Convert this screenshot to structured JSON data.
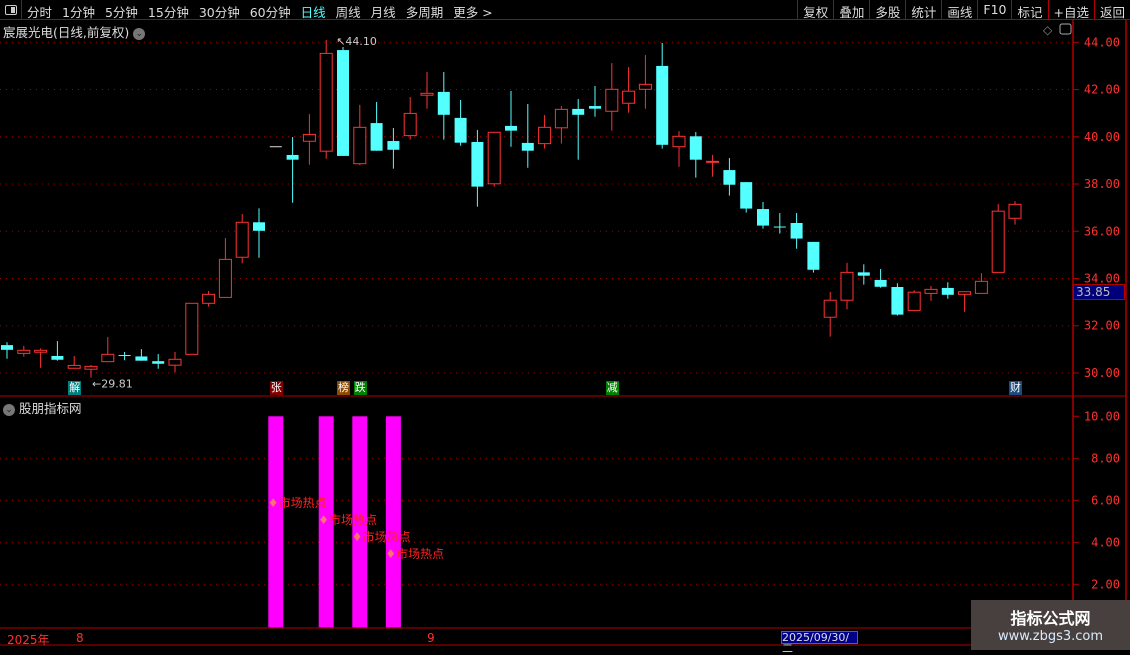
{
  "toolbar": {
    "periods": [
      "分时",
      "1分钟",
      "5分钟",
      "15分钟",
      "30分钟",
      "60分钟",
      "日线",
      "周线",
      "月线",
      "多周期",
      "更多 >"
    ],
    "active_period": "日线",
    "right_buttons": [
      "复权",
      "叠加",
      "多股",
      "统计",
      "画线",
      "F10",
      "标记",
      "+自选",
      "返回"
    ]
  },
  "stock": {
    "title": "宸展光电(日线,前复权)",
    "last_price_tag": "33.85",
    "high_label": "44.10",
    "low_label": "29.81"
  },
  "indicator": {
    "title": "股朋指标网",
    "hot_label": "市场热点",
    "axis_ticks": [
      "10.00",
      "8.00",
      "6.00",
      "4.00",
      "2.00"
    ]
  },
  "markers": [
    {
      "text": "解",
      "candle": 4,
      "color": "#008080"
    },
    {
      "text": "张",
      "candle": 16,
      "color": "#800000"
    },
    {
      "text": "榜",
      "candle": 20,
      "color": "#8b4a00"
    },
    {
      "text": "跌",
      "candle": 21,
      "color": "#008000"
    },
    {
      "text": "减",
      "candle": 36,
      "color": "#008000"
    },
    {
      "text": "财",
      "candle": 60,
      "color": "#1a4a80"
    }
  ],
  "time_axis": {
    "year": "2025年",
    "months": [
      "8",
      "9"
    ],
    "cursor_date": "2025/09/30/二"
  },
  "watermark": {
    "title": "指标公式网",
    "url": "www.zbgs3.com"
  },
  "colors": {
    "up": "#ff3232",
    "down": "#54ffff",
    "grid": "#a00000",
    "bar": "#ff00ff"
  },
  "chart_data": [
    {
      "type": "candlestick",
      "ylim": [
        30,
        44
      ],
      "yticks": [
        "44.00",
        "42.00",
        "40.00",
        "38.00",
        "36.00",
        "34.00",
        "32.00",
        "30.00"
      ],
      "ohlc": [
        [
          31.18,
          31.3,
          30.6,
          30.98
        ],
        [
          30.83,
          31.15,
          30.69,
          30.96
        ],
        [
          30.88,
          31.04,
          30.22,
          30.96
        ],
        [
          30.72,
          31.35,
          30.52,
          30.56
        ],
        [
          30.2,
          30.72,
          30.2,
          30.32
        ],
        [
          30.16,
          30.34,
          29.81,
          30.28
        ],
        [
          30.48,
          31.52,
          30.48,
          30.79
        ],
        [
          30.76,
          30.89,
          30.54,
          30.74
        ],
        [
          30.7,
          31.01,
          30.52,
          30.52
        ],
        [
          30.5,
          30.8,
          30.18,
          30.39
        ],
        [
          30.33,
          30.89,
          30.03,
          30.58
        ],
        [
          30.79,
          32.95,
          30.79,
          32.95
        ],
        [
          32.95,
          33.47,
          32.81,
          33.33
        ],
        [
          33.2,
          35.71,
          33.2,
          34.81
        ],
        [
          34.9,
          36.73,
          34.64,
          36.38
        ],
        [
          36.38,
          36.97,
          34.88,
          36.02
        ],
        [
          39.6,
          39.6,
          39.6,
          39.6
        ],
        [
          39.23,
          39.99,
          37.21,
          39.03
        ],
        [
          39.81,
          40.96,
          38.82,
          40.1
        ],
        [
          39.39,
          44.1,
          39.07,
          43.53
        ],
        [
          43.67,
          43.8,
          39.19,
          39.19
        ],
        [
          38.86,
          41.35,
          38.8,
          40.4
        ],
        [
          40.58,
          41.47,
          39.41,
          39.41
        ],
        [
          39.82,
          40.37,
          38.65,
          39.45
        ],
        [
          40.05,
          41.68,
          39.88,
          40.99
        ],
        [
          41.76,
          42.74,
          41.19,
          41.84
        ],
        [
          41.9,
          42.74,
          39.88,
          40.93
        ],
        [
          40.8,
          41.56,
          39.62,
          39.75
        ],
        [
          39.78,
          40.29,
          37.04,
          37.89
        ],
        [
          38.01,
          40.19,
          37.89,
          40.19
        ],
        [
          40.46,
          41.94,
          39.58,
          40.26
        ],
        [
          39.74,
          41.39,
          38.69,
          39.41
        ],
        [
          39.71,
          40.92,
          39.5,
          40.4
        ],
        [
          40.38,
          41.3,
          39.71,
          41.16
        ],
        [
          41.18,
          41.6,
          39.03,
          40.93
        ],
        [
          41.3,
          42.15,
          40.85,
          41.19
        ],
        [
          41.08,
          43.12,
          40.26,
          42.01
        ],
        [
          41.42,
          42.95,
          41.02,
          41.93
        ],
        [
          42.01,
          43.46,
          41.19,
          42.22
        ],
        [
          43.0,
          43.97,
          39.5,
          39.66
        ],
        [
          39.58,
          40.24,
          38.73,
          40.02
        ],
        [
          40.02,
          40.2,
          38.27,
          39.03
        ],
        [
          38.95,
          39.23,
          38.31,
          38.96
        ],
        [
          38.59,
          39.1,
          37.51,
          37.97
        ],
        [
          38.08,
          38.08,
          36.79,
          36.96
        ],
        [
          36.94,
          37.24,
          36.11,
          36.24
        ],
        [
          36.2,
          36.77,
          35.9,
          36.17
        ],
        [
          36.35,
          36.77,
          35.26,
          35.69
        ],
        [
          35.55,
          35.55,
          34.25,
          34.37
        ],
        [
          32.36,
          33.43,
          31.54,
          33.08
        ],
        [
          33.08,
          34.66,
          32.7,
          34.26
        ],
        [
          34.26,
          34.6,
          33.74,
          34.12
        ],
        [
          33.94,
          34.4,
          33.61,
          33.65
        ],
        [
          33.64,
          33.8,
          32.43,
          32.47
        ],
        [
          32.65,
          33.5,
          32.65,
          33.42
        ],
        [
          33.37,
          33.68,
          33.06,
          33.54
        ],
        [
          33.6,
          33.84,
          33.14,
          33.31
        ],
        [
          33.33,
          33.44,
          32.59,
          33.44
        ],
        [
          33.37,
          34.22,
          33.37,
          33.88
        ],
        [
          34.26,
          37.15,
          34.26,
          36.85
        ],
        [
          36.55,
          37.27,
          36.28,
          37.14
        ]
      ]
    },
    {
      "type": "bar",
      "ylim": [
        0,
        10.5
      ],
      "bars": [
        {
          "candle": 16,
          "value": 10
        },
        {
          "candle": 19,
          "value": 10
        },
        {
          "candle": 21,
          "value": 10
        },
        {
          "candle": 23,
          "value": 10
        }
      ],
      "label_value": 5
    }
  ]
}
